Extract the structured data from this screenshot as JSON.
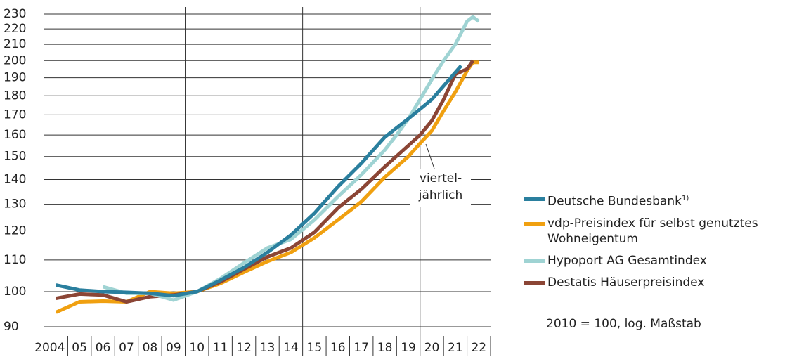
{
  "chart_data": {
    "type": "line",
    "categories": [
      "2004",
      "05",
      "06",
      "07",
      "08",
      "09",
      "10",
      "11",
      "12",
      "13",
      "14",
      "15",
      "16",
      "17",
      "18",
      "19",
      "20",
      "21",
      "22"
    ],
    "xlim": [
      2004,
      2023
    ],
    "xgrid": [
      2010,
      2015,
      2020
    ],
    "ylim": [
      90,
      230
    ],
    "log_scale": true,
    "yticks": [
      90,
      100,
      110,
      120,
      130,
      140,
      150,
      160,
      170,
      180,
      190,
      200,
      210,
      220,
      230
    ],
    "grid": true,
    "series": [
      {
        "name": "Deutsche Bundesbank",
        "footnote_mark": "1)",
        "color": "#2a7f9e",
        "x": [
          2004.5,
          2005.5,
          2006.5,
          2007.5,
          2008.5,
          2009.5,
          2010.5,
          2011.5,
          2012.5,
          2013.5,
          2014.5,
          2015.5,
          2016.5,
          2017.5,
          2018.5,
          2019.5,
          2020.5,
          2021.75
        ],
        "values": [
          102,
          100.5,
          100,
          99.8,
          99.5,
          98.8,
          100,
          103.5,
          107.5,
          112.5,
          118.5,
          126.5,
          137,
          147,
          159,
          168,
          178,
          197
        ]
      },
      {
        "name": "vdp-Preisindex für selbst genutztes Wohneigentum",
        "color": "#f0a010",
        "x": [
          2004.5,
          2005.5,
          2006.5,
          2007.5,
          2008.5,
          2009.5,
          2010.5,
          2011.5,
          2012.5,
          2013.5,
          2014.5,
          2015.5,
          2016.5,
          2017.5,
          2018.5,
          2019.5,
          2020,
          2020.5,
          2021,
          2021.5,
          2022,
          2022.25,
          2022.5
        ],
        "values": [
          94,
          97,
          97.2,
          97,
          100,
          99.5,
          100,
          102.5,
          106,
          109.5,
          112.5,
          117.5,
          124,
          131,
          141,
          150,
          156,
          162,
          172,
          182,
          194,
          199,
          199
        ]
      },
      {
        "name": "Hypoport AG Gesamtindex",
        "color": "#9fd3d3",
        "x": [
          2006.5,
          2007.5,
          2008.5,
          2009.5,
          2010.5,
          2011.5,
          2012.5,
          2013.5,
          2014.5,
          2015.5,
          2016.5,
          2017.5,
          2018.5,
          2019,
          2019.5,
          2020,
          2020.5,
          2021,
          2021.5,
          2022,
          2022.25,
          2022.5
        ],
        "values": [
          101.5,
          99.5,
          99.5,
          97.5,
          100,
          104,
          109,
          114,
          117,
          124,
          133,
          142,
          153,
          160,
          168,
          178,
          189,
          200,
          210,
          225,
          228,
          225
        ]
      },
      {
        "name": "Destatis Häuserpreisindex",
        "color": "#8b4535",
        "x": [
          2004.5,
          2005.5,
          2006.5,
          2007.5,
          2008.5,
          2009.5,
          2010.5,
          2011.5,
          2012.5,
          2013.5,
          2014.5,
          2015.5,
          2016.5,
          2017.5,
          2018.5,
          2019.5,
          2020,
          2020.5,
          2021,
          2021.5,
          2022,
          2022.25
        ],
        "values": [
          98,
          99.3,
          99,
          97,
          98.5,
          99,
          100,
          103,
          107,
          111,
          114,
          119.5,
          128.5,
          136,
          145.5,
          155,
          160,
          167,
          178,
          192,
          195,
          200
        ]
      }
    ],
    "annotation": {
      "lines": [
        "viertel-",
        "jährlich"
      ]
    },
    "note": "2010 = 100, log. Maßstab"
  }
}
